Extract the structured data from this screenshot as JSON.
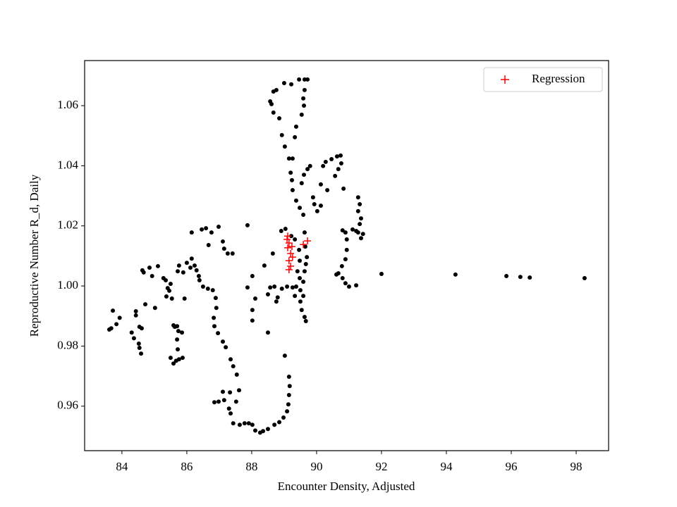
{
  "chart_data": {
    "type": "scatter",
    "xlabel": "Encounter Density, Adjusted",
    "ylabel": "Reproductive Number R_d, Daily",
    "xlim": [
      82.85,
      99.0
    ],
    "ylim": [
      0.9452,
      1.075
    ],
    "xticks": [
      84,
      86,
      88,
      90,
      92,
      94,
      96,
      98
    ],
    "yticks": [
      0.96,
      0.98,
      {
        "value": 1,
        "label": "1.00"
      },
      1.02,
      1.04,
      1.06
    ],
    "legend": "upper right",
    "points": {
      "color": "#000000",
      "x": [
        83.61,
        83.67,
        83.72,
        83.83,
        83.93,
        84.3,
        84.37,
        84.43,
        84.43,
        84.52,
        84.54,
        84.59,
        84.54,
        84.61,
        84.72,
        84.63,
        84.67,
        84.85,
        84.93,
        85.02,
        85.11,
        85.28,
        85.35,
        85.41,
        85.46,
        85.37,
        85.5,
        85.59,
        85.63,
        85.7,
        85.74,
        85.54,
        85.5,
        85.59,
        85.67,
        85.76,
        85.87,
        85.7,
        85.72,
        85.76,
        85.72,
        85.89,
        85.93,
        85.85,
        86.0,
        86.15,
        86.11,
        86.24,
        86.3,
        86.37,
        86.39,
        86.5,
        86.65,
        86.8,
        86.89,
        86.91,
        86.83,
        86.85,
        86.96,
        87.11,
        87.2,
        87.35,
        87.43,
        87.54,
        87.61,
        87.52,
        87.33,
        87.11,
        86.98,
        86.85,
        87.15,
        87.3,
        87.35,
        87.43,
        87.63,
        87.78,
        87.91,
        88.02,
        88.11,
        88.26,
        88.35,
        88.5,
        88.7,
        88.85,
        88.98,
        89.09,
        89.13,
        89.15,
        89.17,
        89.15,
        89.02,
        88.5,
        88.02,
        88.02,
        88.11,
        87.87,
        88.02,
        88.39,
        88.65,
        87.87,
        86.67,
        86.76,
        86.98,
        86.59,
        86.46,
        86.15,
        87.15,
        87.26,
        87.41,
        87.11,
        88.5,
        88.57,
        88.7,
        88.8,
        88.76,
        88.93,
        89.09,
        89.26,
        89.37,
        89.5,
        89.59,
        89.54,
        89.63,
        89.67,
        89.59,
        89.63,
        89.67,
        89.7,
        89.65,
        89.63,
        89.59,
        89.48,
        89.37,
        89.26,
        89.24,
        89.2,
        89.15,
        89.02,
        88.93,
        88.85,
        88.67,
        88.61,
        88.67,
        88.76,
        89.0,
        89.22,
        89.46,
        89.63,
        89.72,
        89.63,
        89.59,
        89.61,
        89.54,
        89.37,
        89.33,
        89.26,
        89.33,
        89.46,
        89.48,
        89.41,
        89.48,
        89.33,
        89.5,
        88.91,
        89.04,
        89.22,
        88.57,
        89.54,
        89.61,
        89.72,
        89.8,
        89.89,
        89.93,
        90.02,
        90.13,
        90.2,
        90.28,
        90.46,
        90.63,
        90.74,
        90.76,
        90.67,
        90.57,
        90.33,
        90.13,
        90.83,
        90.89,
        90.8,
        90.93,
        90.93,
        90.89,
        90.78,
        90.67,
        90.61,
        90.8,
        90.89,
        91.0,
        91.22,
        91.11,
        91.22,
        91.28,
        91.37,
        91.43,
        91.33,
        91.28,
        91.28,
        91.33,
        91.37,
        92.0,
        94.28,
        95.85,
        96.28,
        96.57,
        98.26
      ],
      "y": [
        0.9855,
        0.9859,
        0.9918,
        0.9873,
        0.9894,
        0.9845,
        0.9826,
        0.9916,
        0.9902,
        0.9808,
        0.9794,
        0.9775,
        0.9864,
        0.9859,
        0.9939,
        1.0052,
        1.0045,
        1.0061,
        1.0033,
        0.9927,
        1.0066,
        1.0026,
        1.0019,
        0.9993,
        0.9984,
        0.9965,
        1.0007,
        0.9869,
        0.9864,
        0.9866,
        0.985,
        0.9958,
        0.9761,
        0.9742,
        0.9751,
        0.9756,
        0.9761,
        0.9822,
        0.9789,
        1.0068,
        1.0049,
        1.0045,
        0.9958,
        0.9845,
        1.0077,
        1.0091,
        1.0061,
        1.0068,
        1.0052,
        1.0033,
        1.0019,
        0.9998,
        0.9991,
        0.9986,
        0.996,
        0.9927,
        0.9894,
        0.9866,
        0.9843,
        0.9815,
        0.9796,
        0.9756,
        0.9733,
        0.9705,
        0.9653,
        0.9615,
        0.9646,
        0.9648,
        0.9615,
        0.9613,
        0.962,
        0.9592,
        0.9576,
        0.9543,
        0.9538,
        0.9543,
        0.9543,
        0.9538,
        0.9519,
        0.9512,
        0.9517,
        0.9524,
        0.9538,
        0.9547,
        0.9562,
        0.9583,
        0.9606,
        0.9637,
        0.9667,
        0.9698,
        0.9768,
        0.9845,
        0.9885,
        0.992,
        0.9958,
        0.9995,
        1.0033,
        1.0068,
        1.0108,
        1.0202,
        1.0136,
        1.0178,
        1.0197,
        1.0192,
        1.0188,
        1.0178,
        1.0124,
        1.0108,
        1.0108,
        1.0148,
        0.9972,
        0.9995,
        0.9998,
        0.9962,
        0.9948,
        0.9991,
        0.9998,
        0.9995,
        0.9998,
        0.9986,
        0.9967,
        0.992,
        0.9897,
        0.9883,
        1.0014,
        1.0049,
        1.0073,
        1.0096,
        1.0131,
        1.0178,
        1.0237,
        1.026,
        1.0284,
        1.0319,
        1.0352,
        1.0377,
        1.0424,
        1.0464,
        1.0502,
        1.0558,
        1.0577,
        1.0605,
        1.0647,
        1.0652,
        1.0675,
        1.0671,
        1.0687,
        1.0687,
        1.0687,
        1.0652,
        1.0624,
        1.06,
        1.057,
        1.053,
        1.0495,
        1.0424,
        1.0155,
        1.012,
        1.0084,
        1.0049,
        1.0026,
        0.9967,
        0.9948,
        1.0183,
        1.019,
        1.0166,
        1.0614,
        1.0342,
        1.037,
        1.0389,
        1.0399,
        1.0295,
        1.0272,
        1.0249,
        1.0267,
        1.0399,
        1.0413,
        1.0422,
        1.0431,
        1.0434,
        1.0408,
        1.0389,
        1.0366,
        1.0319,
        1.0338,
        1.0324,
        1.0178,
        1.0185,
        1.0155,
        1.012,
        1.0089,
        1.0066,
        1.0042,
        1.0038,
        1.0026,
        1.0009,
        0.9998,
        1.0002,
        1.0188,
        1.0183,
        1.0178,
        1.0159,
        1.0173,
        1.0206,
        1.0249,
        1.0295,
        1.0272,
        1.0225,
        1.004,
        1.0038,
        1.0033,
        1.003,
        1.0028,
        1.0026
      ]
    },
    "series": [
      {
        "name": "Regression",
        "color": "#ff0000",
        "x": [
          89.11,
          89.15,
          89.11,
          89.2,
          89.15,
          89.2,
          89.15,
          89.24,
          89.26,
          89.72,
          89.59,
          89.09
        ],
        "y": [
          1.0166,
          1.0143,
          1.0127,
          1.0108,
          1.0084,
          1.0066,
          1.0054,
          1.0131,
          1.0096,
          1.015,
          1.0138,
          1.0155
        ]
      }
    ]
  }
}
